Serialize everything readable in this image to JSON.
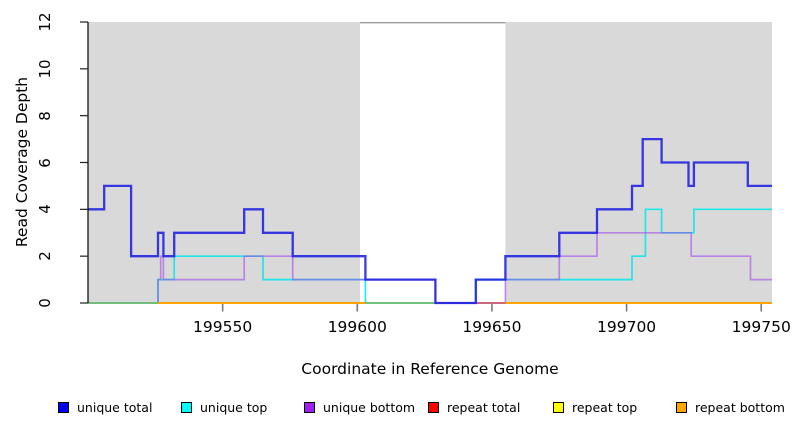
{
  "axes": {
    "x_label": "Coordinate in Reference Genome",
    "y_label": "Read Coverage Depth",
    "x_tick_labels": [
      "199550",
      "199600",
      "199650",
      "199700",
      "199750"
    ],
    "x_tick_values": [
      199550,
      199600,
      199650,
      199700,
      199750
    ],
    "y_tick_labels": [
      "0",
      "2",
      "4",
      "6",
      "8",
      "10",
      "12"
    ],
    "y_tick_values": [
      0,
      2,
      4,
      6,
      8,
      10,
      12
    ]
  },
  "legend": {
    "items": [
      {
        "label": "unique total",
        "color": "#0000EE"
      },
      {
        "label": "unique top",
        "color": "#00FFFF"
      },
      {
        "label": "unique bottom",
        "color": "#A020F0"
      },
      {
        "label": "repeat total",
        "color": "#FF0000"
      },
      {
        "label": "repeat top",
        "color": "#FFFF00"
      },
      {
        "label": "repeat bottom",
        "color": "#FFA500"
      }
    ]
  },
  "chart_data": {
    "type": "line",
    "subtype": "step-coverage",
    "title": "",
    "xlabel": "Coordinate in Reference Genome",
    "ylabel": "Read Coverage Depth",
    "x_range": [
      199500,
      199754
    ],
    "y_range": [
      0,
      12
    ],
    "grid": false,
    "legend_position": "bottom",
    "shaded_regions": [
      [
        199500,
        199601
      ],
      [
        199655,
        199754
      ]
    ],
    "shaded_color": "#D9D9D9",
    "gap_top_border": {
      "from": 199601,
      "to": 199655,
      "color": "#9C9C9C"
    },
    "series": [
      {
        "name": "repeat total",
        "color": "#DD0000",
        "opacity": 1,
        "width": 1.6,
        "steps": [
          [
            199500,
            0
          ]
        ]
      },
      {
        "name": "repeat top",
        "color": "#FFFF00",
        "opacity": 1,
        "width": 1.6,
        "steps": [
          [
            199500,
            0
          ]
        ]
      },
      {
        "name": "repeat bottom",
        "color": "#FFA500",
        "opacity": 1,
        "width": 1.8,
        "steps": [
          [
            199500,
            0
          ]
        ]
      },
      {
        "name": "unique top",
        "color": "#00E8E8",
        "opacity": 0.85,
        "width": 1.7,
        "steps": [
          [
            199500,
            0
          ],
          [
            199526,
            1
          ],
          [
            199532,
            2
          ],
          [
            199565,
            1
          ],
          [
            199603,
            0
          ],
          [
            199644,
            1
          ],
          [
            199702,
            2
          ],
          [
            199707,
            4
          ],
          [
            199713,
            3
          ],
          [
            199725,
            4
          ]
        ]
      },
      {
        "name": "unique bottom",
        "color": "#A24DE8",
        "opacity": 0.6,
        "width": 1.7,
        "steps": [
          [
            199500,
            0
          ],
          [
            199526,
            1
          ],
          [
            199527,
            2
          ],
          [
            199528,
            1
          ],
          [
            199558,
            2
          ],
          [
            199576,
            1
          ],
          [
            199629,
            0
          ],
          [
            199655,
            1
          ],
          [
            199675,
            2
          ],
          [
            199689,
            3
          ],
          [
            199724,
            2
          ],
          [
            199746,
            1
          ]
        ]
      },
      {
        "name": "unique total",
        "color": "#1F1FE0",
        "opacity": 0.88,
        "width": 2.3,
        "steps": [
          [
            199500,
            4
          ],
          [
            199506,
            5
          ],
          [
            199516,
            2
          ],
          [
            199526,
            3
          ],
          [
            199528,
            2
          ],
          [
            199532,
            3
          ],
          [
            199558,
            4
          ],
          [
            199565,
            3
          ],
          [
            199576,
            2
          ],
          [
            199603,
            1
          ],
          [
            199629,
            0
          ],
          [
            199644,
            1
          ],
          [
            199655,
            2
          ],
          [
            199675,
            3
          ],
          [
            199689,
            4
          ],
          [
            199702,
            5
          ],
          [
            199706,
            7
          ],
          [
            199713,
            6
          ],
          [
            199723,
            5
          ],
          [
            199725,
            6
          ],
          [
            199745,
            5
          ]
        ]
      }
    ],
    "baseline_overlays": [
      {
        "from": 199500,
        "to": 199526,
        "color": "#74C276"
      },
      {
        "from": 199526,
        "to": 199603,
        "color": "#FFA500"
      },
      {
        "from": 199603,
        "to": 199629,
        "color": "#74C276"
      },
      {
        "from": 199644,
        "to": 199655,
        "color": "#CC6680"
      },
      {
        "from": 199655,
        "to": 199754,
        "color": "#FFA500"
      }
    ]
  }
}
